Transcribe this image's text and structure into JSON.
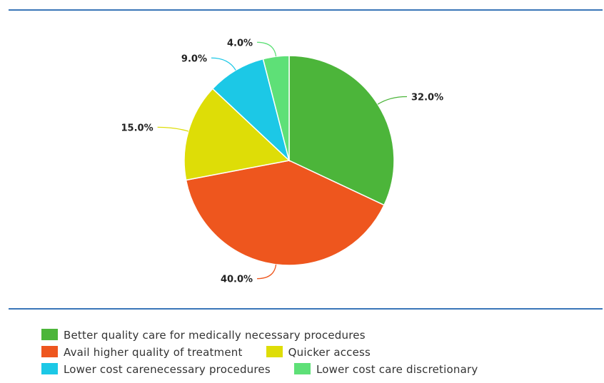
{
  "chart_data": {
    "type": "pie",
    "slices": [
      {
        "label": "Better quality care for medically necessary procedures",
        "value": 32.0,
        "display": "32.0%",
        "color": "#4cb53a"
      },
      {
        "label": "Avail higher quality of treatment",
        "value": 40.0,
        "display": "40.0%",
        "color": "#ee561e"
      },
      {
        "label": "Quicker access",
        "value": 15.0,
        "display": "15.0%",
        "color": "#dedd07"
      },
      {
        "label": "Lower cost carenecessary procedures",
        "value": 9.0,
        "display": "9.0%",
        "color": "#1cc8e6"
      },
      {
        "label": "Lower cost care discretionary",
        "value": 4.0,
        "display": "4.0%",
        "color": "#5ee077"
      }
    ],
    "legend_position": "bottom"
  }
}
